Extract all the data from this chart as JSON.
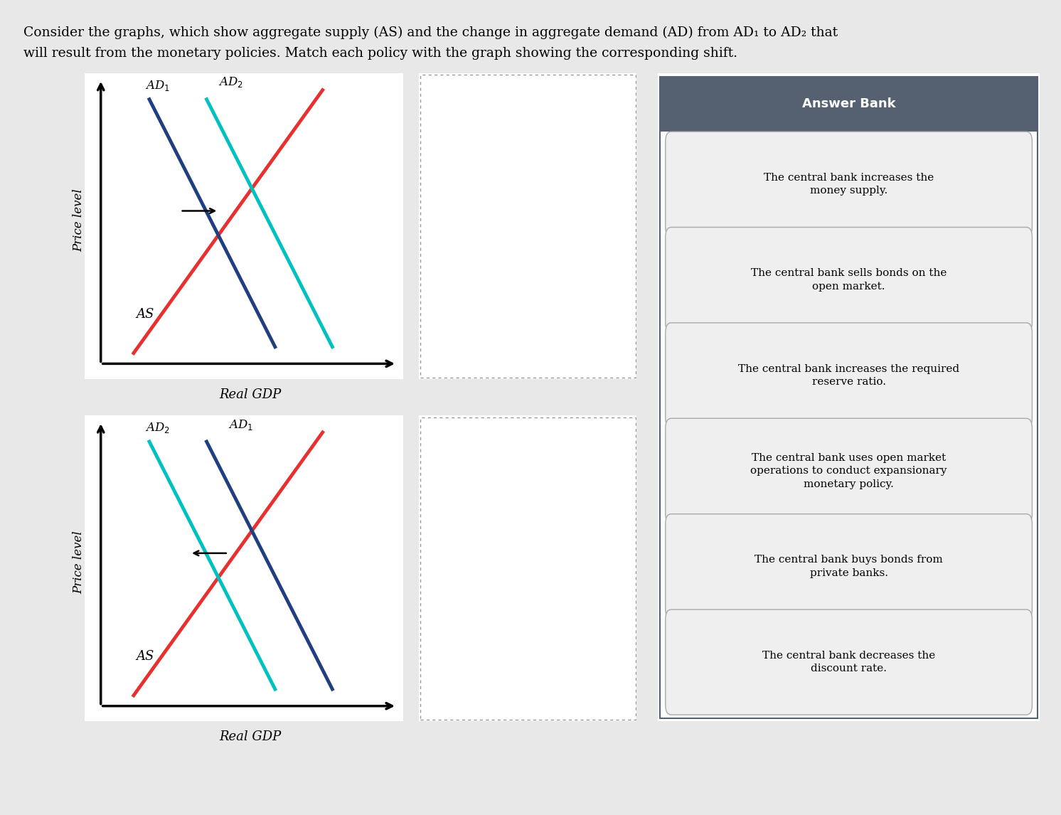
{
  "title_line1": "Consider the graphs, which show aggregate supply (AS) and the change in aggregate demand (AD) from AD₁ to AD₂ that",
  "title_line2": "will result from the monetary policies. Match each policy with the graph showing the corresponding shift.",
  "page_bg": "#e8e8e8",
  "graph1": {
    "ad1_color": "#1f3f80",
    "ad2_color": "#00c0c0",
    "as_color": "#e83030",
    "ad1_label": "AD$_1$",
    "ad2_label": "AD$_2$",
    "as_label": "AS",
    "xlabel": "Real GDP",
    "ylabel": "Price level",
    "shift_direction": "right"
  },
  "graph2": {
    "ad1_color": "#1f3f80",
    "ad2_color": "#00c0c0",
    "as_color": "#e83030",
    "ad1_label": "AD$_1$",
    "ad2_label": "AD$_2$",
    "as_label": "AS",
    "xlabel": "Real GDP",
    "ylabel": "Price level",
    "shift_direction": "left"
  },
  "answer_bank_header": "Answer Bank",
  "answer_bank_header_bg": "#556070",
  "answer_bank_header_color": "#ffffff",
  "answer_bank_border": "#556070",
  "answer_items": [
    "The central bank increases the\nmoney supply.",
    "The central bank sells bonds on the\nopen market.",
    "The central bank increases the required\nreserve ratio.",
    "The central bank uses open market\noperations to conduct expansionary\nmonetary policy.",
    "The central bank buys bonds from\nprivate banks.",
    "The central bank decreases the\ndiscount rate."
  ],
  "answer_item_bg": "#efefef",
  "answer_item_border": "#aaaaaa",
  "dotted_box_color": "#999999",
  "arrow_color": "#000000"
}
